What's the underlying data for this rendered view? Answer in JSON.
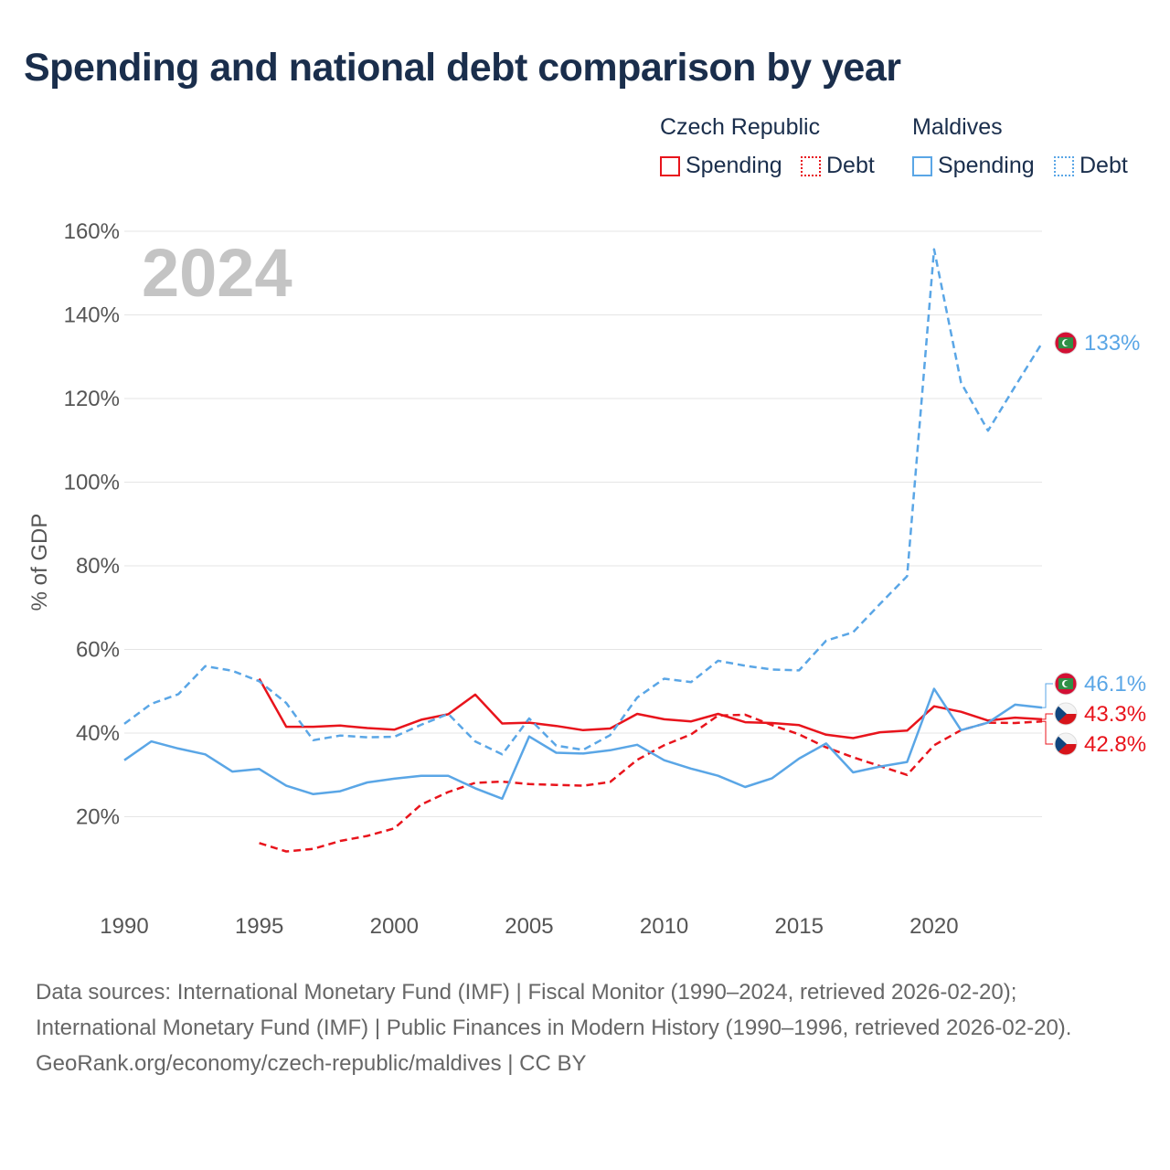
{
  "title": "Spending and national debt comparison by year",
  "colors": {
    "czech": "#e8141c",
    "maldives": "#5aa6e6",
    "text": "#1a2e4c",
    "grid": "#e5e5e5",
    "axis_text": "#555555",
    "year_text": "#c4c4c4"
  },
  "legend": {
    "groups": [
      {
        "name": "Czech Republic",
        "spending_label": "Spending",
        "debt_label": "Debt"
      },
      {
        "name": "Maldives",
        "spending_label": "Spending",
        "debt_label": "Debt"
      }
    ]
  },
  "chart_data": {
    "type": "line",
    "year_label": "2024",
    "ylabel": "% of GDP",
    "xlim": [
      1990,
      2024
    ],
    "ylim": [
      0,
      160
    ],
    "y_ticks": [
      20,
      40,
      60,
      80,
      100,
      120,
      140,
      160
    ],
    "y_tick_labels": [
      "20%",
      "40%",
      "60%",
      "80%",
      "100%",
      "120%",
      "140%",
      "160%"
    ],
    "x_ticks": [
      1990,
      1995,
      2000,
      2005,
      2010,
      2015,
      2020
    ],
    "x_tick_labels": [
      "1990",
      "1995",
      "2000",
      "2005",
      "2010",
      "2015",
      "2020"
    ],
    "series": [
      {
        "name": "Czech Republic Spending",
        "country": "czech",
        "dashed": false,
        "x": [
          1995,
          1996,
          1997,
          1998,
          1999,
          2000,
          2001,
          2002,
          2003,
          2004,
          2005,
          2006,
          2007,
          2008,
          2009,
          2010,
          2011,
          2012,
          2013,
          2014,
          2015,
          2016,
          2017,
          2018,
          2019,
          2020,
          2021,
          2022,
          2023,
          2024
        ],
        "values": [
          53,
          41.5,
          41.5,
          41.8,
          41.2,
          40.8,
          43.2,
          44.5,
          49.2,
          42.3,
          42.5,
          41.7,
          40.7,
          41.1,
          44.6,
          43.3,
          42.8,
          44.6,
          42.6,
          42.4,
          41.9,
          39.6,
          38.8,
          40.2,
          40.6,
          46.4,
          45.1,
          43,
          43.7,
          43.3
        ]
      },
      {
        "name": "Czech Republic Debt",
        "country": "czech",
        "dashed": true,
        "x": [
          1995,
          1996,
          1997,
          1998,
          1999,
          2000,
          2001,
          2002,
          2003,
          2004,
          2005,
          2006,
          2007,
          2008,
          2009,
          2010,
          2011,
          2012,
          2013,
          2014,
          2015,
          2016,
          2017,
          2018,
          2019,
          2020,
          2021,
          2022,
          2023,
          2024
        ],
        "values": [
          13.7,
          11.7,
          12.3,
          14.2,
          15.4,
          17.2,
          22.9,
          25.9,
          28.1,
          28.4,
          27.8,
          27.6,
          27.4,
          28.3,
          33.6,
          37.1,
          39.7,
          44.2,
          44.4,
          41.9,
          39.7,
          36.6,
          34.2,
          32.1,
          30,
          37.1,
          40.7,
          42.5,
          42.4,
          42.8
        ]
      },
      {
        "name": "Maldives Spending",
        "country": "maldives",
        "dashed": false,
        "x": [
          1990,
          1991,
          1992,
          1993,
          1994,
          1995,
          1996,
          1997,
          1998,
          1999,
          2000,
          2001,
          2002,
          2003,
          2004,
          2005,
          2006,
          2007,
          2008,
          2009,
          2010,
          2011,
          2012,
          2013,
          2014,
          2015,
          2016,
          2017,
          2018,
          2019,
          2020,
          2021,
          2022,
          2023,
          2024
        ],
        "values": [
          33.5,
          38,
          36.3,
          34.9,
          30.8,
          31.4,
          27.4,
          25.4,
          26.1,
          28.2,
          29.1,
          29.8,
          29.8,
          26.8,
          24.3,
          39.2,
          35.3,
          35.1,
          35.9,
          37.2,
          33.5,
          31.5,
          29.8,
          27.1,
          29.2,
          33.9,
          37.5,
          30.6,
          32,
          33.1,
          50.6,
          40.7,
          42.5,
          46.8,
          46.1
        ]
      },
      {
        "name": "Maldives Debt",
        "country": "maldives",
        "dashed": true,
        "x": [
          1990,
          1991,
          1992,
          1993,
          1994,
          1995,
          1996,
          1997,
          1998,
          1999,
          2000,
          2001,
          2002,
          2003,
          2004,
          2005,
          2006,
          2007,
          2008,
          2009,
          2010,
          2011,
          2012,
          2013,
          2014,
          2015,
          2016,
          2017,
          2018,
          2019,
          2020,
          2021,
          2022,
          2023,
          2024
        ],
        "values": [
          42.2,
          47,
          49.3,
          56,
          54.9,
          52.4,
          47.2,
          38.3,
          39.4,
          39,
          39.1,
          42,
          44.6,
          38,
          34.9,
          43.5,
          37,
          36,
          39.5,
          48.5,
          53,
          52.2,
          57.3,
          56.1,
          55.2,
          55,
          62.1,
          64.1,
          70.9,
          77.5,
          155.7,
          123.8,
          112.3,
          122.9,
          133.3
        ]
      }
    ],
    "end_labels": [
      {
        "country": "maldives",
        "value": 133.3,
        "text": "133%",
        "flag": "maldives"
      },
      {
        "country": "maldives",
        "value": 46.1,
        "text": "46.1%",
        "flag": "maldives"
      },
      {
        "country": "czech",
        "value": 43.3,
        "text": "43.3%",
        "flag": "czech"
      },
      {
        "country": "czech",
        "value": 42.8,
        "text": "42.8%",
        "flag": "czech"
      }
    ]
  },
  "source": {
    "line1": "Data sources: International Monetary Fund (IMF) | Fiscal Monitor (1990–2024, retrieved 2026-02-20); International Monetary Fund (IMF) | Public Finances in Modern History (1990–1996, retrieved 2026-02-20).",
    "line2": "GeoRank.org/economy/czech-republic/maldives | CC BY"
  }
}
